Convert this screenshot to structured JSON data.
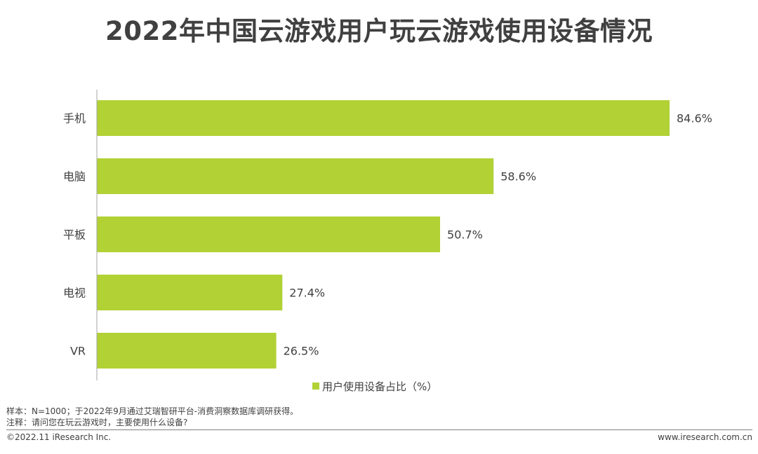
{
  "colors": {
    "bar": "#b1d135",
    "text": "#404040",
    "axis": "#a6a6a6"
  },
  "notes": {
    "sample": "样本：N=1000；于2022年9月通过艾瑞智研平台-消费洞察数据库调研获得。",
    "remark": "注释：请问您在玩云游戏时，主要使用什么设备?"
  },
  "footer": {
    "copyright": "©2022.11 iResearch Inc.",
    "website": "www.iresearch.com.cn"
  },
  "chart_data": {
    "type": "bar",
    "orientation": "horizontal",
    "title": "2022年中国云游戏用户玩云游戏使用设备情况",
    "categories": [
      "手机",
      "电脑",
      "平板",
      "电视",
      "VR"
    ],
    "series": [
      {
        "name": "用户使用设备占比（%）",
        "values": [
          84.6,
          58.6,
          50.7,
          27.4,
          26.5
        ],
        "labels": [
          "84.6%",
          "58.6%",
          "50.7%",
          "27.4%",
          "26.5%"
        ]
      }
    ],
    "xlim": [
      0,
      84.6
    ],
    "grid": false,
    "legend_position": "bottom"
  }
}
